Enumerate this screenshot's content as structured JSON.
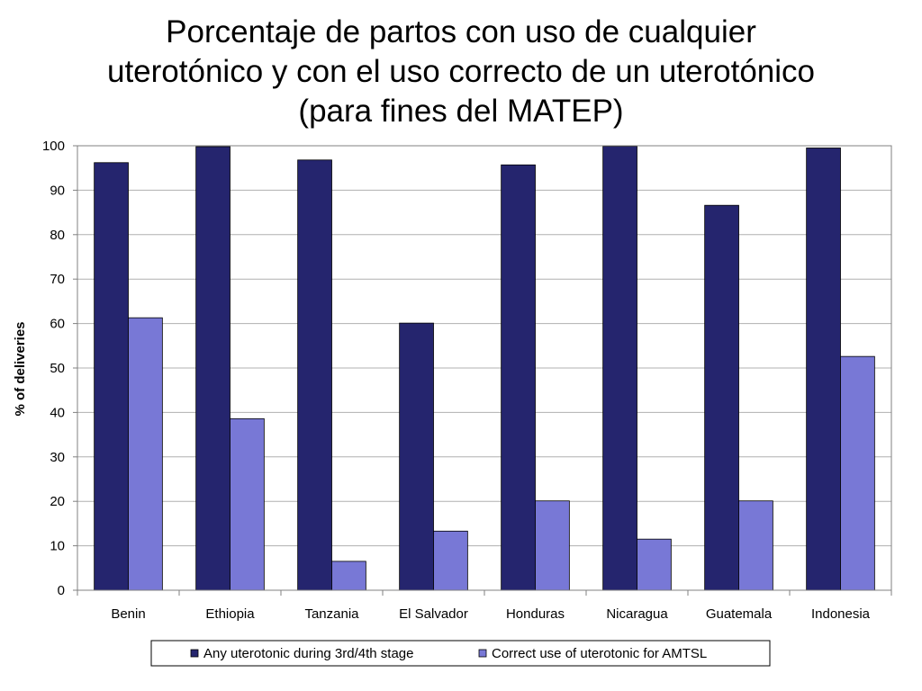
{
  "title_lines": [
    "Porcentaje de partos con uso de cualquier",
    "uterotónico y con el uso correcto de un uterotónico",
    "(para fines del MATEP)"
  ],
  "colors": {
    "series1": "#25256E",
    "series2": "#7878D6",
    "grid": "#B0B0B0",
    "axis": "#808080"
  },
  "chart_data": {
    "type": "bar",
    "title": "Porcentaje de partos con uso de cualquier uterotónico y con el uso correcto de un uterotónico (para fines del MATEP)",
    "xlabel": "",
    "ylabel": "% of deliveries",
    "ylim": [
      0,
      100
    ],
    "yticks": [
      "0",
      "10",
      "20",
      "30",
      "40",
      "50",
      "60",
      "70",
      "80",
      "90",
      "100"
    ],
    "grid": true,
    "legend_position": "bottom",
    "categories": [
      "Benin",
      "Ethiopia",
      "Tanzania",
      "El Salvador",
      "Honduras",
      "Nicaragua",
      "Guatemala",
      "Indonesia"
    ],
    "series": [
      {
        "name": "Any uterotonic during 3rd/4th stage",
        "values": [
          96.2,
          99.8,
          96.8,
          60.1,
          95.7,
          99.9,
          86.6,
          99.5
        ]
      },
      {
        "name": "Correct use of uterotonic for AMTSL",
        "values": [
          61.3,
          38.6,
          6.5,
          13.3,
          20.1,
          11.5,
          20.1,
          52.6
        ]
      }
    ]
  }
}
